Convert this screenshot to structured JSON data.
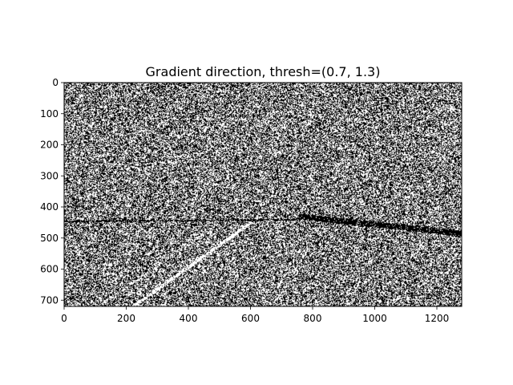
{
  "chart_data": {
    "type": "heatmap",
    "title": "Gradient direction, thresh=(0.7, 1.3)",
    "xlabel": "",
    "ylabel": "",
    "xlim": [
      0,
      1280
    ],
    "ylim": [
      720,
      0
    ],
    "x_ticks": [
      0,
      200,
      400,
      600,
      800,
      1000,
      1200
    ],
    "y_ticks": [
      0,
      100,
      200,
      300,
      400,
      500,
      600,
      700
    ],
    "colormap": "binary image (black = 0, white = 1)",
    "grid": false,
    "legend": "none",
    "features": [
      {
        "kind": "white diagonal line",
        "from": [
          220,
          720
        ],
        "to": [
          620,
          435
        ]
      },
      {
        "kind": "faint white diagonal line",
        "from": [
          110,
          720
        ],
        "to": [
          480,
          460
        ]
      },
      {
        "kind": "dark horizontal band",
        "from": [
          0,
          445
        ],
        "to": [
          760,
          440
        ]
      },
      {
        "kind": "dark sloped band",
        "from": [
          760,
          430
        ],
        "to": [
          1280,
          485
        ]
      }
    ]
  },
  "colors": {
    "background": "#ffffff",
    "pixel_on": "#ffffff",
    "pixel_off": "#000000",
    "axes": "#000000"
  }
}
